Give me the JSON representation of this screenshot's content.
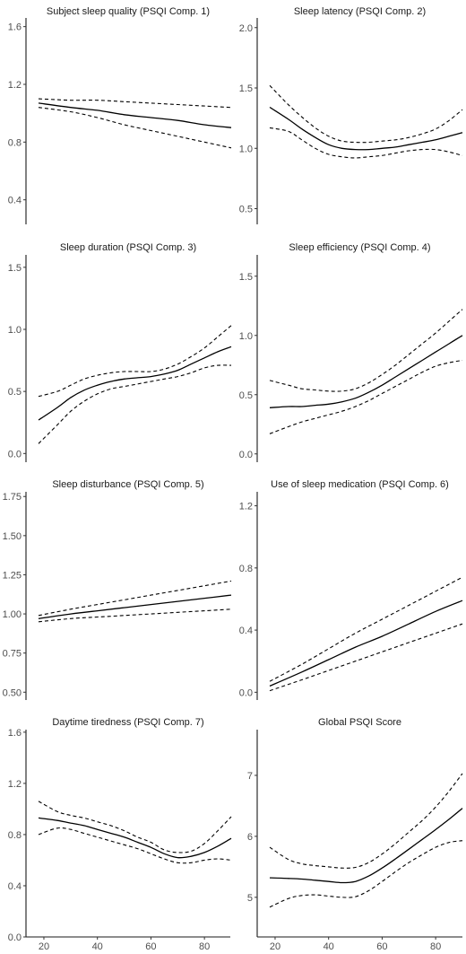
{
  "chart_data": [
    {
      "type": "line",
      "title": "Subject sleep quality (PSQI Comp. 1)",
      "ylim": [
        0.23,
        1.66
      ],
      "yticks": [
        "0.4",
        "0.8",
        "1.2",
        "1.6"
      ],
      "xlim": [
        13,
        93
      ],
      "series": [
        {
          "role": "fit",
          "x": [
            18,
            30,
            40,
            50,
            60,
            70,
            80,
            90
          ],
          "y": [
            1.07,
            1.04,
            1.02,
            0.99,
            0.97,
            0.95,
            0.92,
            0.9
          ]
        },
        {
          "role": "ci_upper",
          "x": [
            18,
            30,
            40,
            50,
            60,
            70,
            80,
            90
          ],
          "y": [
            1.1,
            1.09,
            1.09,
            1.08,
            1.07,
            1.06,
            1.05,
            1.04
          ]
        },
        {
          "role": "ci_lower",
          "x": [
            18,
            30,
            40,
            50,
            60,
            70,
            80,
            90
          ],
          "y": [
            1.04,
            1.01,
            0.97,
            0.92,
            0.88,
            0.84,
            0.8,
            0.76
          ]
        }
      ]
    },
    {
      "type": "line",
      "title": "Sleep latency (PSQI Comp. 2)",
      "ylim": [
        0.37,
        2.08
      ],
      "yticks": [
        "0.5",
        "1.0",
        "1.5",
        "2.0"
      ],
      "xlim": [
        13,
        93
      ],
      "series": [
        {
          "role": "fit",
          "x": [
            18,
            25,
            30,
            35,
            40,
            45,
            50,
            55,
            60,
            65,
            70,
            75,
            80,
            85,
            90
          ],
          "y": [
            1.34,
            1.24,
            1.16,
            1.09,
            1.03,
            1.0,
            0.99,
            0.99,
            1.0,
            1.01,
            1.03,
            1.05,
            1.07,
            1.1,
            1.13
          ]
        },
        {
          "role": "ci_upper",
          "x": [
            18,
            25,
            30,
            35,
            40,
            45,
            50,
            55,
            60,
            65,
            70,
            75,
            80,
            85,
            90
          ],
          "y": [
            1.52,
            1.36,
            1.26,
            1.17,
            1.1,
            1.06,
            1.05,
            1.05,
            1.06,
            1.07,
            1.09,
            1.12,
            1.16,
            1.23,
            1.32
          ]
        },
        {
          "role": "ci_lower",
          "x": [
            18,
            25,
            30,
            35,
            40,
            45,
            50,
            55,
            60,
            65,
            70,
            75,
            80,
            85,
            90
          ],
          "y": [
            1.17,
            1.14,
            1.07,
            1.0,
            0.95,
            0.93,
            0.92,
            0.93,
            0.94,
            0.96,
            0.98,
            0.99,
            0.99,
            0.97,
            0.94
          ]
        }
      ]
    },
    {
      "type": "line",
      "title": "Sleep duration (PSQI Comp. 3)",
      "ylim": [
        -0.07,
        1.6
      ],
      "yticks": [
        "0.0",
        "0.5",
        "1.0",
        "1.5"
      ],
      "xlim": [
        13,
        93
      ],
      "series": [
        {
          "role": "fit",
          "x": [
            18,
            25,
            30,
            35,
            40,
            45,
            50,
            55,
            60,
            65,
            70,
            75,
            80,
            85,
            90
          ],
          "y": [
            0.27,
            0.37,
            0.45,
            0.51,
            0.55,
            0.58,
            0.6,
            0.61,
            0.62,
            0.64,
            0.67,
            0.72,
            0.77,
            0.82,
            0.86
          ]
        },
        {
          "role": "ci_upper",
          "x": [
            18,
            25,
            30,
            35,
            40,
            45,
            50,
            55,
            60,
            65,
            70,
            75,
            80,
            85,
            90
          ],
          "y": [
            0.46,
            0.5,
            0.55,
            0.6,
            0.63,
            0.65,
            0.66,
            0.66,
            0.66,
            0.68,
            0.72,
            0.78,
            0.85,
            0.94,
            1.03
          ]
        },
        {
          "role": "ci_lower",
          "x": [
            18,
            25,
            30,
            35,
            40,
            45,
            50,
            55,
            60,
            65,
            70,
            75,
            80,
            85,
            90
          ],
          "y": [
            0.08,
            0.23,
            0.34,
            0.42,
            0.48,
            0.52,
            0.54,
            0.56,
            0.58,
            0.6,
            0.62,
            0.65,
            0.69,
            0.71,
            0.71
          ]
        }
      ]
    },
    {
      "type": "line",
      "title": "Sleep efficiency (PSQI Comp. 4)",
      "ylim": [
        -0.07,
        1.68
      ],
      "yticks": [
        "0.0",
        "0.5",
        "1.0",
        "1.5"
      ],
      "xlim": [
        13,
        93
      ],
      "series": [
        {
          "role": "fit",
          "x": [
            18,
            25,
            30,
            35,
            40,
            45,
            50,
            55,
            60,
            65,
            70,
            75,
            80,
            85,
            90
          ],
          "y": [
            0.39,
            0.4,
            0.4,
            0.41,
            0.42,
            0.44,
            0.47,
            0.52,
            0.58,
            0.65,
            0.72,
            0.79,
            0.86,
            0.93,
            1.0
          ]
        },
        {
          "role": "ci_upper",
          "x": [
            18,
            25,
            30,
            35,
            40,
            45,
            50,
            55,
            60,
            65,
            70,
            75,
            80,
            85,
            90
          ],
          "y": [
            0.62,
            0.58,
            0.55,
            0.54,
            0.53,
            0.53,
            0.55,
            0.6,
            0.67,
            0.75,
            0.84,
            0.93,
            1.02,
            1.12,
            1.22
          ]
        },
        {
          "role": "ci_lower",
          "x": [
            18,
            25,
            30,
            35,
            40,
            45,
            50,
            55,
            60,
            65,
            70,
            75,
            80,
            85,
            90
          ],
          "y": [
            0.17,
            0.23,
            0.27,
            0.3,
            0.33,
            0.36,
            0.4,
            0.45,
            0.51,
            0.57,
            0.63,
            0.69,
            0.74,
            0.77,
            0.79
          ]
        }
      ]
    },
    {
      "type": "line",
      "title": "Sleep disturbance (PSQI Comp. 5)",
      "ylim": [
        0.45,
        1.78
      ],
      "yticks": [
        "0.50",
        "0.75",
        "1.00",
        "1.25",
        "1.50",
        "1.75"
      ],
      "xlim": [
        13,
        93
      ],
      "series": [
        {
          "role": "fit",
          "x": [
            18,
            30,
            40,
            50,
            60,
            70,
            80,
            90
          ],
          "y": [
            0.97,
            1.0,
            1.02,
            1.04,
            1.06,
            1.08,
            1.1,
            1.12
          ]
        },
        {
          "role": "ci_upper",
          "x": [
            18,
            30,
            40,
            50,
            60,
            70,
            80,
            90
          ],
          "y": [
            0.99,
            1.03,
            1.06,
            1.09,
            1.12,
            1.15,
            1.18,
            1.21
          ]
        },
        {
          "role": "ci_lower",
          "x": [
            18,
            30,
            40,
            50,
            60,
            70,
            80,
            90
          ],
          "y": [
            0.95,
            0.97,
            0.98,
            0.99,
            1.0,
            1.01,
            1.02,
            1.03
          ]
        }
      ]
    },
    {
      "type": "line",
      "title": "Use of sleep medication (PSQI Comp. 6)",
      "ylim": [
        -0.05,
        1.29
      ],
      "yticks": [
        "0.0",
        "0.4",
        "0.8",
        "1.2"
      ],
      "xlim": [
        13,
        93
      ],
      "series": [
        {
          "role": "fit",
          "x": [
            18,
            30,
            40,
            50,
            60,
            70,
            80,
            90
          ],
          "y": [
            0.04,
            0.13,
            0.21,
            0.29,
            0.36,
            0.44,
            0.52,
            0.59
          ]
        },
        {
          "role": "ci_upper",
          "x": [
            18,
            30,
            40,
            50,
            60,
            70,
            80,
            90
          ],
          "y": [
            0.07,
            0.18,
            0.28,
            0.38,
            0.47,
            0.56,
            0.65,
            0.74
          ]
        },
        {
          "role": "ci_lower",
          "x": [
            18,
            30,
            40,
            50,
            60,
            70,
            80,
            90
          ],
          "y": [
            0.01,
            0.08,
            0.14,
            0.2,
            0.26,
            0.32,
            0.38,
            0.44
          ]
        }
      ]
    },
    {
      "type": "line",
      "title": "Daytime tiredness (PSQI Comp. 7)",
      "xlabel": "",
      "ylim": [
        0.0,
        1.62
      ],
      "yticks": [
        "0.0",
        "0.4",
        "0.8",
        "1.2",
        "1.6"
      ],
      "xlim": [
        13,
        93
      ],
      "xticks": [
        20,
        40,
        60,
        80
      ],
      "series": [
        {
          "role": "fit",
          "x": [
            18,
            25,
            30,
            35,
            40,
            45,
            50,
            55,
            60,
            65,
            70,
            75,
            80,
            85,
            90
          ],
          "y": [
            0.93,
            0.91,
            0.89,
            0.87,
            0.84,
            0.81,
            0.78,
            0.74,
            0.7,
            0.65,
            0.62,
            0.63,
            0.66,
            0.71,
            0.77
          ]
        },
        {
          "role": "ci_upper",
          "x": [
            18,
            25,
            30,
            35,
            40,
            45,
            50,
            55,
            60,
            65,
            70,
            75,
            80,
            85,
            90
          ],
          "y": [
            1.06,
            0.98,
            0.95,
            0.93,
            0.9,
            0.87,
            0.83,
            0.78,
            0.74,
            0.68,
            0.66,
            0.67,
            0.73,
            0.83,
            0.94
          ]
        },
        {
          "role": "ci_lower",
          "x": [
            18,
            25,
            30,
            35,
            40,
            45,
            50,
            55,
            60,
            65,
            70,
            75,
            80,
            85,
            90
          ],
          "y": [
            0.8,
            0.85,
            0.84,
            0.81,
            0.78,
            0.75,
            0.72,
            0.69,
            0.65,
            0.61,
            0.58,
            0.58,
            0.6,
            0.61,
            0.6
          ]
        }
      ]
    },
    {
      "type": "line",
      "title": "Global PSQI Score",
      "ylim": [
        4.35,
        7.75
      ],
      "yticks": [
        "5",
        "6",
        "7"
      ],
      "xlim": [
        13,
        93
      ],
      "xticks": [
        20,
        40,
        60,
        80
      ],
      "series": [
        {
          "role": "fit",
          "x": [
            18,
            25,
            30,
            35,
            40,
            45,
            50,
            55,
            60,
            65,
            70,
            75,
            80,
            85,
            90
          ],
          "y": [
            5.32,
            5.31,
            5.3,
            5.28,
            5.26,
            5.24,
            5.26,
            5.35,
            5.48,
            5.63,
            5.79,
            5.95,
            6.11,
            6.28,
            6.46
          ]
        },
        {
          "role": "ci_upper",
          "x": [
            18,
            25,
            30,
            35,
            40,
            45,
            50,
            55,
            60,
            65,
            70,
            75,
            80,
            85,
            90
          ],
          "y": [
            5.82,
            5.62,
            5.55,
            5.52,
            5.5,
            5.48,
            5.49,
            5.57,
            5.71,
            5.88,
            6.07,
            6.26,
            6.48,
            6.74,
            7.03
          ]
        },
        {
          "role": "ci_lower",
          "x": [
            18,
            25,
            30,
            35,
            40,
            45,
            50,
            55,
            60,
            65,
            70,
            75,
            80,
            85,
            90
          ],
          "y": [
            4.84,
            4.98,
            5.03,
            5.04,
            5.02,
            5.0,
            5.01,
            5.11,
            5.26,
            5.42,
            5.57,
            5.7,
            5.82,
            5.9,
            5.93
          ]
        }
      ]
    }
  ]
}
